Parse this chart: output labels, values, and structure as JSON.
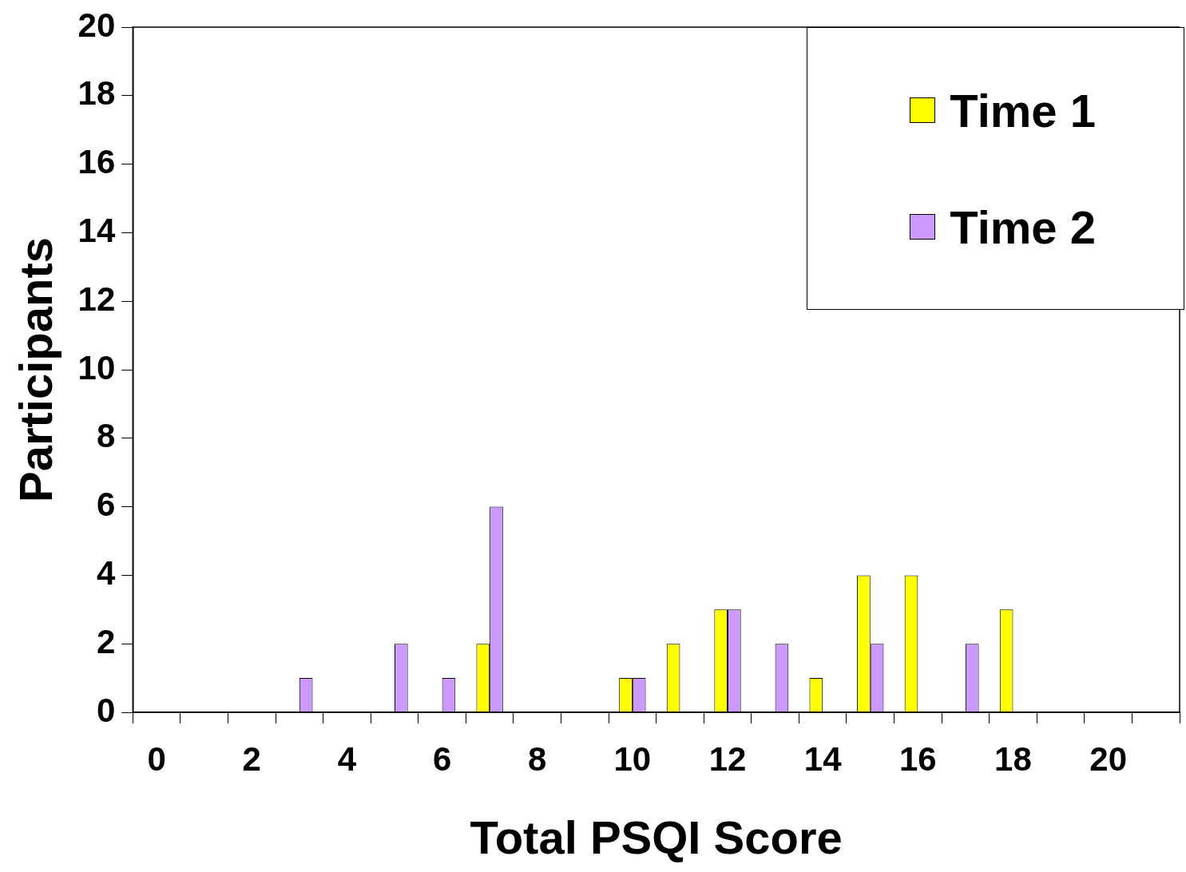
{
  "chart_data": {
    "type": "bar",
    "xlabel": "Total PSQI Score",
    "ylabel": "Participants",
    "categories": [
      "0",
      null,
      "2",
      null,
      "4",
      null,
      "6",
      null,
      "8",
      null,
      "10",
      null,
      "12",
      null,
      "14",
      null,
      "16",
      null,
      "18",
      null,
      "20",
      null
    ],
    "series": [
      {
        "name": "Time 1",
        "color": "#ffff00",
        "values": [
          0,
          0,
          0,
          0,
          0,
          0,
          0,
          2,
          0,
          0,
          1,
          2,
          3,
          0,
          1,
          4,
          4,
          0,
          3,
          0,
          0,
          0
        ]
      },
      {
        "name": "Time 2",
        "color": "#cc99ff",
        "values": [
          0,
          0,
          0,
          1,
          0,
          2,
          1,
          6,
          0,
          0,
          1,
          0,
          3,
          2,
          0,
          2,
          0,
          2,
          0,
          0,
          0,
          0
        ]
      }
    ],
    "ylim": [
      0,
      20
    ],
    "yticks": [
      0,
      2,
      4,
      6,
      8,
      10,
      12,
      14,
      16,
      18,
      20
    ],
    "grid": false,
    "legend": "top right"
  }
}
